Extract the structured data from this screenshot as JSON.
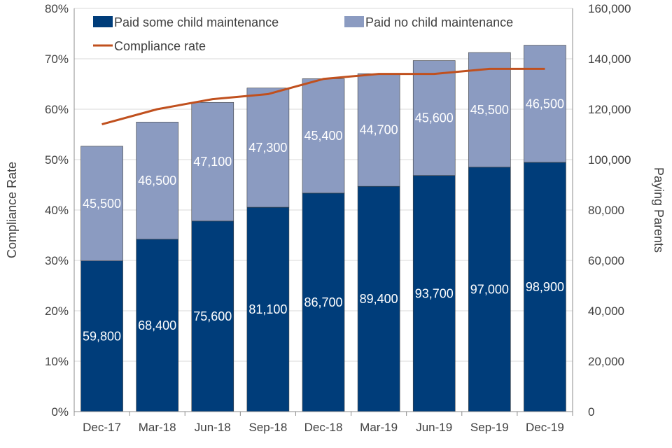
{
  "chart_data": {
    "type": "bar",
    "stacked": true,
    "categories": [
      "Dec-17",
      "Mar-18",
      "Jun-18",
      "Sep-18",
      "Dec-18",
      "Mar-19",
      "Jun-19",
      "Sep-19",
      "Dec-19"
    ],
    "series": [
      {
        "name": "Paid some child maintenance",
        "type": "bar",
        "axis": "right",
        "color": "#003D7A",
        "values": [
          59800,
          68400,
          75600,
          81100,
          86700,
          89400,
          93700,
          97000,
          98900
        ],
        "labels": [
          "59,800",
          "68,400",
          "75,600",
          "81,100",
          "86,700",
          "89,400",
          "93,700",
          "97,000",
          "98,900"
        ]
      },
      {
        "name": "Paid no child maintenance",
        "type": "bar",
        "axis": "right",
        "color": "#8B9BC1",
        "values": [
          45500,
          46500,
          47100,
          47300,
          45400,
          44700,
          45600,
          45500,
          46500
        ],
        "labels": [
          "45,500",
          "46,500",
          "47,100",
          "47,300",
          "45,400",
          "44,700",
          "45,600",
          "45,500",
          "46,500"
        ]
      },
      {
        "name": "Compliance rate",
        "type": "line",
        "axis": "left",
        "color": "#C0501E",
        "values": [
          57,
          60,
          62,
          63,
          66,
          67,
          67,
          68,
          68
        ]
      }
    ],
    "y_left": {
      "label": "Compliance Rate",
      "range": [
        0,
        80
      ],
      "step": 10,
      "tick_labels": [
        "0%",
        "10%",
        "20%",
        "30%",
        "40%",
        "50%",
        "60%",
        "70%",
        "80%"
      ]
    },
    "y_right": {
      "label": "Paying Parents",
      "range": [
        0,
        160000
      ],
      "step": 20000,
      "tick_labels": [
        "0",
        "20,000",
        "40,000",
        "60,000",
        "80,000",
        "100,000",
        "120,000",
        "140,000",
        "160,000"
      ]
    },
    "grid": true,
    "legend_position": "top"
  }
}
